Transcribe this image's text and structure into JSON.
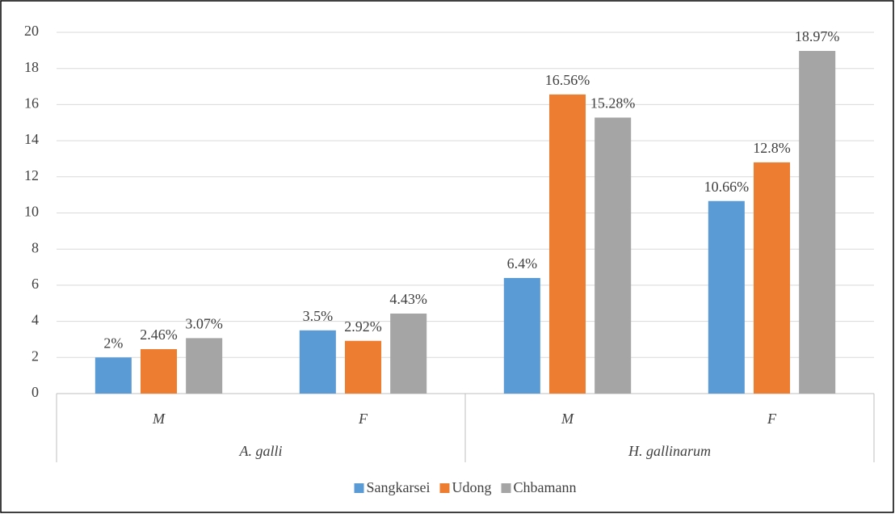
{
  "chart_data": {
    "type": "bar",
    "category_groups": [
      {
        "name": "A. galli",
        "categories": [
          "M",
          "F"
        ]
      },
      {
        "name": "H. gallinarum",
        "categories": [
          "M",
          "F"
        ]
      }
    ],
    "series": [
      {
        "name": "Sangkarsei",
        "color": "#5b9bd5",
        "values": [
          2,
          3.5,
          6.4,
          10.66
        ],
        "value_labels": [
          "2%",
          "3.5%",
          "6.4%",
          "10.66%"
        ]
      },
      {
        "name": "Udong",
        "color": "#ed7d31",
        "values": [
          2.46,
          2.92,
          16.56,
          12.8
        ],
        "value_labels": [
          "2.46%",
          "2.92%",
          "16.56%",
          "12.8%"
        ]
      },
      {
        "name": "Chbamann",
        "color": "#a5a5a5",
        "values": [
          3.07,
          4.43,
          15.28,
          18.97
        ],
        "value_labels": [
          "3.07%",
          "4.43%",
          "15.28%",
          "18.97%"
        ]
      }
    ],
    "ylim": [
      0,
      20
    ],
    "yticks": [
      0,
      2,
      4,
      6,
      8,
      10,
      12,
      14,
      16,
      18,
      20
    ],
    "grid": true,
    "legend": "bottom"
  }
}
